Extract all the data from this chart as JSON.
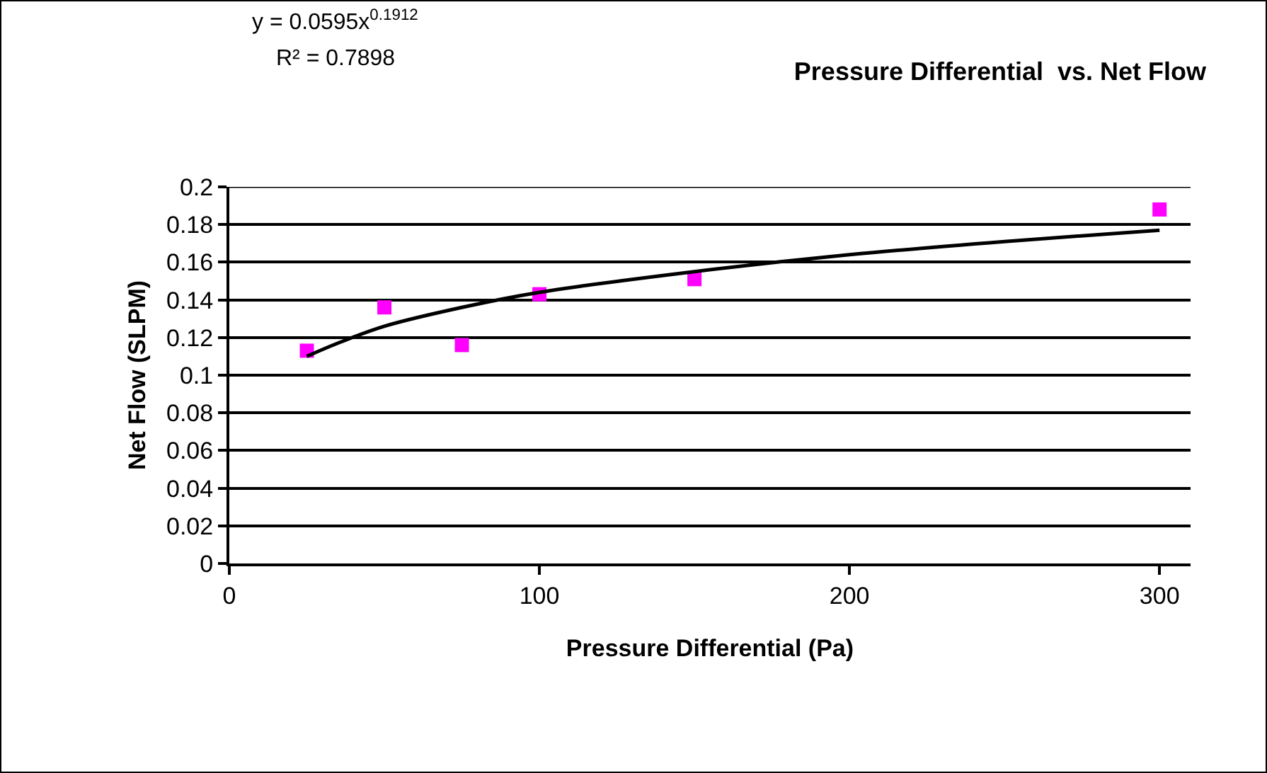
{
  "chart_data": {
    "type": "scatter",
    "title": "Pressure Differential  vs. Net Flow",
    "xlabel": "Pressure Differential (Pa)",
    "ylabel": "Net Flow (SLPM)",
    "annotations": [
      "y = 0.0595x$^{0.1912}$",
      "R² = 0.7898"
    ],
    "series": [
      {
        "color": "#ff00ff",
        "marker": "square",
        "x": [
          25,
          50,
          75,
          100,
          150,
          300
        ],
        "values": [
          0.113,
          0.136,
          0.116,
          0.143,
          0.151,
          0.188
        ]
      },
      {
        "type": "line",
        "color": "#000000",
        "marker": "none",
        "x": [
          25,
          35,
          50,
          75,
          100,
          150,
          200,
          250,
          300
        ],
        "values": [
          0.11,
          0.117,
          0.126,
          0.136,
          0.144,
          0.155,
          0.164,
          0.171,
          0.177
        ]
      }
    ],
    "xlim": [
      0,
      310
    ],
    "xticks": [
      0,
      100,
      200,
      300
    ],
    "ylim": [
      0,
      0.2
    ],
    "yticks": [
      0,
      0.02,
      0.04,
      0.06,
      0.08,
      0.1,
      0.12,
      0.14,
      0.16,
      0.18,
      0.2
    ],
    "grid": "y"
  }
}
